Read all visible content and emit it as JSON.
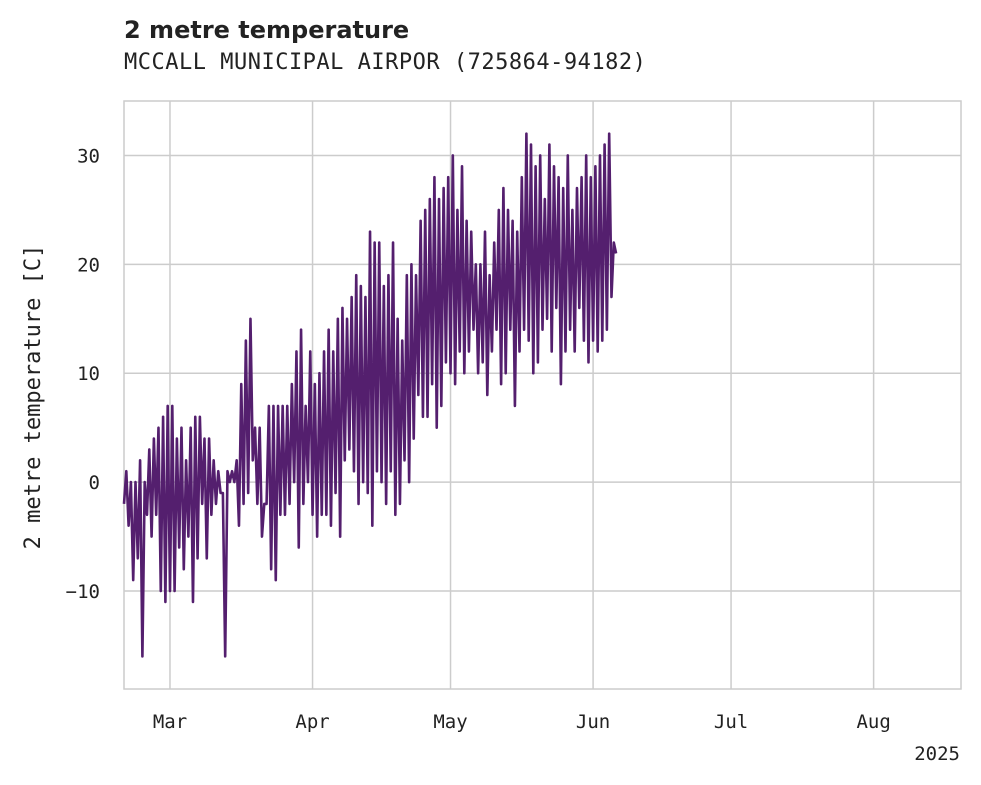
{
  "chart_data": {
    "type": "line",
    "title": "2 metre temperature",
    "subtitle": "MCCALL MUNICIPAL AIRPOR (725864-94182)",
    "ylabel": "2 metre temperature [C]",
    "xlabel": "",
    "x_range": [
      "2025-02-19",
      "2025-08-20"
    ],
    "ylim": [
      -19,
      35
    ],
    "yticks": [
      -10,
      0,
      10,
      20,
      30
    ],
    "ytick_labels": [
      "−10",
      "0",
      "10",
      "20",
      "30"
    ],
    "xticks": [
      {
        "label": "Mar",
        "date": "2025-03-01"
      },
      {
        "label": "Apr",
        "date": "2025-04-01"
      },
      {
        "label": "May",
        "date": "2025-05-01"
      },
      {
        "label": "Jun",
        "date": "2025-06-01"
      },
      {
        "label": "Jul",
        "date": "2025-07-01"
      },
      {
        "label": "Aug",
        "date": "2025-08-01"
      }
    ],
    "year_label": "2025",
    "grid": true,
    "series": [
      {
        "color": "#541f6e",
        "sampling": "twice daily (daily min and max, approx.)",
        "start_date": "2025-02-19",
        "values": [
          -2,
          1,
          -4,
          0,
          -9,
          0,
          -7,
          2,
          -16,
          0,
          -3,
          3,
          -5,
          4,
          -3,
          5,
          -10,
          6,
          -11,
          7,
          -10,
          7,
          -10,
          4,
          -6,
          5,
          -8,
          2,
          -5,
          5,
          -11,
          6,
          -7,
          6,
          -2,
          4,
          -7,
          4,
          -3,
          2,
          -2,
          1,
          -1,
          -1,
          -16,
          1,
          0,
          1,
          0,
          2,
          -4,
          9,
          -2,
          13,
          -1,
          15,
          2,
          5,
          -2,
          5,
          -5,
          -2,
          -2,
          7,
          -8,
          7,
          -9,
          7,
          -3,
          7,
          -3,
          7,
          -2,
          9,
          0,
          12,
          -6,
          14,
          -2,
          7,
          0,
          12,
          -3,
          9,
          -5,
          10,
          -3,
          12,
          -3,
          14,
          -4,
          12,
          -1,
          15,
          -5,
          16,
          2,
          15,
          3,
          17,
          1,
          19,
          -2,
          18,
          0,
          17,
          -1,
          23,
          -4,
          22,
          1,
          22,
          0,
          18,
          -2,
          19,
          1,
          22,
          -3,
          15,
          -2,
          13,
          2,
          19,
          0,
          20,
          4,
          19,
          8,
          24,
          6,
          25,
          6,
          26,
          9,
          28,
          5,
          26,
          7,
          27,
          11,
          28,
          10,
          30,
          9,
          25,
          12,
          29,
          10,
          24,
          12,
          23,
          14,
          20,
          10,
          20,
          11,
          23,
          8,
          19,
          12,
          22,
          14,
          25,
          9,
          27,
          10,
          25,
          14,
          24,
          7,
          23,
          12,
          28,
          14,
          32,
          13,
          31,
          10,
          29,
          11,
          30,
          14,
          26,
          15,
          31,
          12,
          29,
          16,
          28,
          9,
          27,
          12,
          30,
          14,
          25,
          12,
          27,
          16,
          28,
          13,
          30,
          11,
          28,
          13,
          29,
          12,
          30,
          13,
          31,
          14,
          32,
          17,
          22,
          21
        ]
      }
    ]
  }
}
